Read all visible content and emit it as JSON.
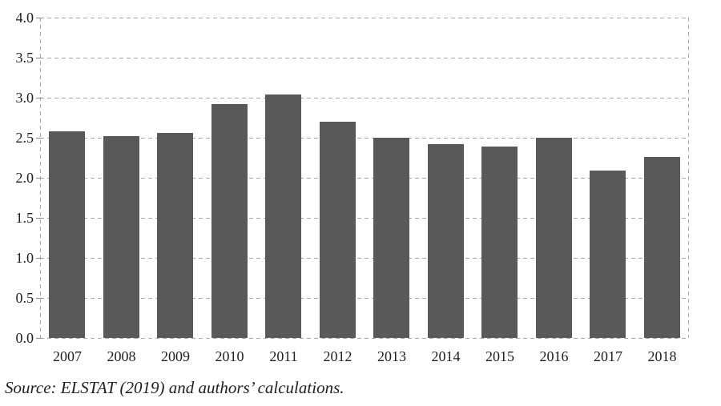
{
  "chart_data": {
    "type": "bar",
    "title": "",
    "xlabel": "",
    "ylabel": "",
    "categories": [
      "2007",
      "2008",
      "2009",
      "2010",
      "2011",
      "2012",
      "2013",
      "2014",
      "2015",
      "2016",
      "2017",
      "2018"
    ],
    "values": [
      2.58,
      2.52,
      2.56,
      2.92,
      3.04,
      2.7,
      2.5,
      2.42,
      2.39,
      2.5,
      2.09,
      2.26
    ],
    "ylim": [
      0.0,
      4.0
    ],
    "ytick_step": 0.5,
    "ytick_labels": [
      "0.0",
      "0.5",
      "1.0",
      "1.5",
      "2.0",
      "2.5",
      "3.0",
      "3.5",
      "4.0"
    ],
    "grid": "horizontal-dashed",
    "legend_position": "none",
    "bar_color": "#595959",
    "grid_color": "#a6a6a6",
    "tick_color": "#8c8c8c",
    "text_color": "#1f1f1f"
  },
  "footer": {
    "source_note": "Source: ELSTAT (2019) and authors’ calculations."
  }
}
